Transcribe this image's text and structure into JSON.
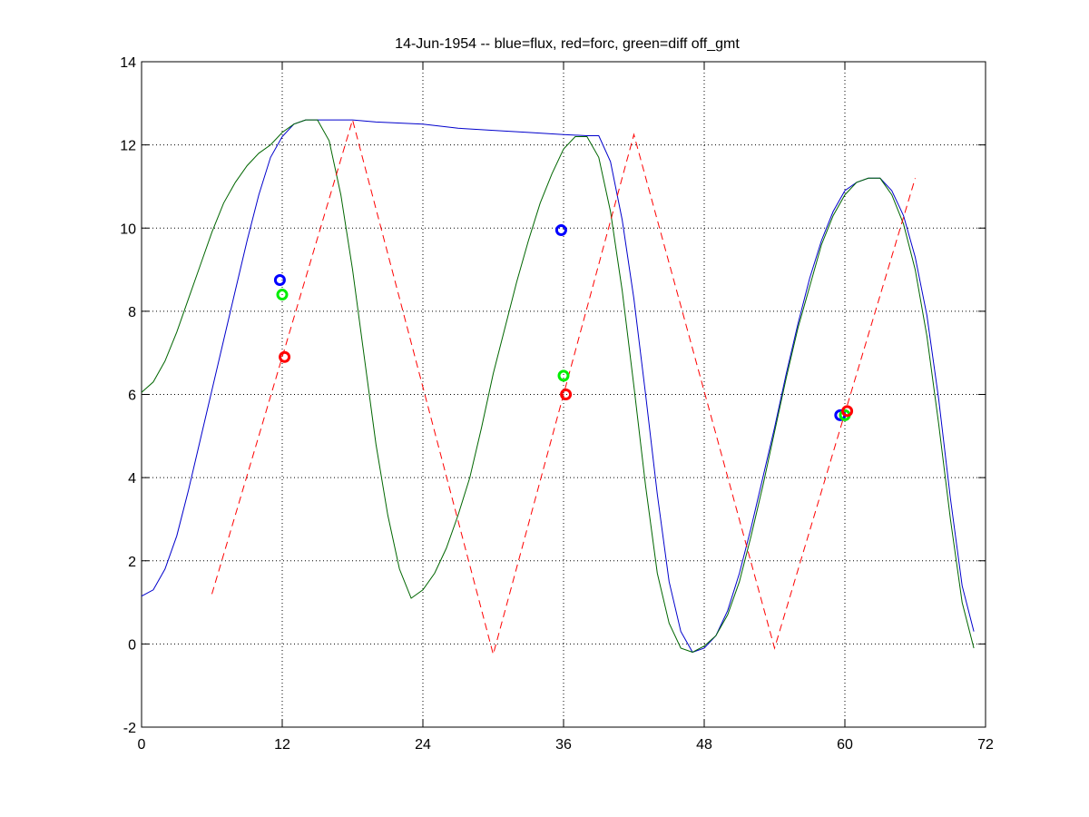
{
  "chart_data": {
    "type": "line",
    "title": "14-Jun-1954 -- blue=flux, red=forc, green=diff off_gmt",
    "xlabel": "",
    "ylabel": "",
    "xlim": [
      0,
      72
    ],
    "ylim": [
      -2,
      14
    ],
    "xticks": [
      0,
      12,
      24,
      36,
      48,
      60,
      72
    ],
    "yticks": [
      -2,
      0,
      2,
      4,
      6,
      8,
      10,
      12,
      14
    ],
    "xtick_labels": [
      "0",
      "12",
      "24",
      "36",
      "48",
      "60",
      "72"
    ],
    "ytick_labels": [
      "-2",
      "0",
      "2",
      "4",
      "6",
      "8",
      "10",
      "12",
      "14"
    ],
    "grid": "dotted",
    "legend": "none",
    "series": [
      {
        "color": "#0000cc",
        "style": "solid",
        "x": [
          0,
          1,
          2,
          3,
          4,
          5,
          6,
          7,
          8,
          9,
          10,
          11,
          12,
          13,
          14,
          15,
          16,
          18,
          20,
          24,
          27,
          30,
          33,
          36,
          38,
          39,
          40,
          41,
          42,
          43,
          44,
          45,
          46,
          47,
          48,
          49,
          50,
          51,
          52,
          53,
          54,
          55,
          56,
          57,
          58,
          59,
          60,
          61,
          62,
          63,
          64,
          65,
          66,
          67,
          68,
          69,
          70,
          71
        ],
        "y": [
          1.15,
          1.3,
          1.8,
          2.6,
          3.7,
          4.9,
          6.1,
          7.3,
          8.5,
          9.7,
          10.8,
          11.7,
          12.2,
          12.5,
          12.6,
          12.6,
          12.6,
          12.6,
          12.55,
          12.5,
          12.4,
          12.35,
          12.3,
          12.25,
          12.22,
          12.22,
          11.6,
          10.2,
          8.3,
          6.0,
          3.6,
          1.5,
          0.3,
          -0.2,
          -0.1,
          0.2,
          0.8,
          1.7,
          2.8,
          4.0,
          5.2,
          6.5,
          7.7,
          8.8,
          9.7,
          10.4,
          10.9,
          11.1,
          11.2,
          11.2,
          10.9,
          10.3,
          9.3,
          7.9,
          5.9,
          3.5,
          1.4,
          0.3
        ]
      },
      {
        "color": "#006600",
        "style": "solid",
        "x": [
          0,
          1,
          2,
          3,
          4,
          5,
          6,
          7,
          8,
          9,
          10,
          11,
          12,
          13,
          14,
          15,
          16,
          17,
          18,
          19,
          20,
          21,
          22,
          23,
          24,
          25,
          26,
          27,
          28,
          29,
          30,
          31,
          32,
          33,
          34,
          35,
          36,
          37,
          38,
          39,
          40,
          41,
          42,
          43,
          44,
          45,
          46,
          47,
          48,
          49,
          50,
          51,
          52,
          53,
          54,
          55,
          56,
          57,
          58,
          59,
          60,
          61,
          62,
          63,
          64,
          65,
          66,
          67,
          68,
          69,
          70,
          71
        ],
        "y": [
          6.05,
          6.3,
          6.8,
          7.5,
          8.3,
          9.1,
          9.9,
          10.6,
          11.1,
          11.5,
          11.8,
          12.0,
          12.3,
          12.5,
          12.6,
          12.6,
          12.1,
          10.8,
          9.0,
          6.9,
          4.8,
          3.1,
          1.8,
          1.1,
          1.3,
          1.7,
          2.3,
          3.1,
          4.0,
          5.2,
          6.5,
          7.6,
          8.7,
          9.7,
          10.6,
          11.3,
          11.9,
          12.2,
          12.2,
          11.7,
          10.4,
          8.5,
          6.2,
          3.8,
          1.7,
          0.5,
          -0.1,
          -0.2,
          -0.05,
          0.2,
          0.7,
          1.5,
          2.6,
          3.8,
          5.1,
          6.4,
          7.6,
          8.6,
          9.6,
          10.3,
          10.8,
          11.1,
          11.2,
          11.2,
          10.8,
          10.1,
          9.0,
          7.4,
          5.3,
          3.0,
          1.0,
          -0.1
        ]
      },
      {
        "color": "#ff0000",
        "style": "dashed",
        "x": [
          6,
          18,
          30,
          42,
          54,
          66
        ],
        "y": [
          1.2,
          12.6,
          -0.25,
          12.25,
          -0.1,
          11.2
        ]
      }
    ],
    "markers": [
      {
        "color": "#0000ff",
        "points": [
          [
            11.8,
            8.75
          ],
          [
            35.8,
            9.95
          ],
          [
            59.6,
            5.5
          ]
        ]
      },
      {
        "color": "#00ee00",
        "points": [
          [
            12.0,
            8.4
          ],
          [
            36.0,
            6.45
          ],
          [
            60.0,
            5.5
          ]
        ]
      },
      {
        "color": "#ff0000",
        "points": [
          [
            12.2,
            6.9
          ],
          [
            36.2,
            6.0
          ],
          [
            60.2,
            5.6
          ]
        ]
      }
    ]
  }
}
